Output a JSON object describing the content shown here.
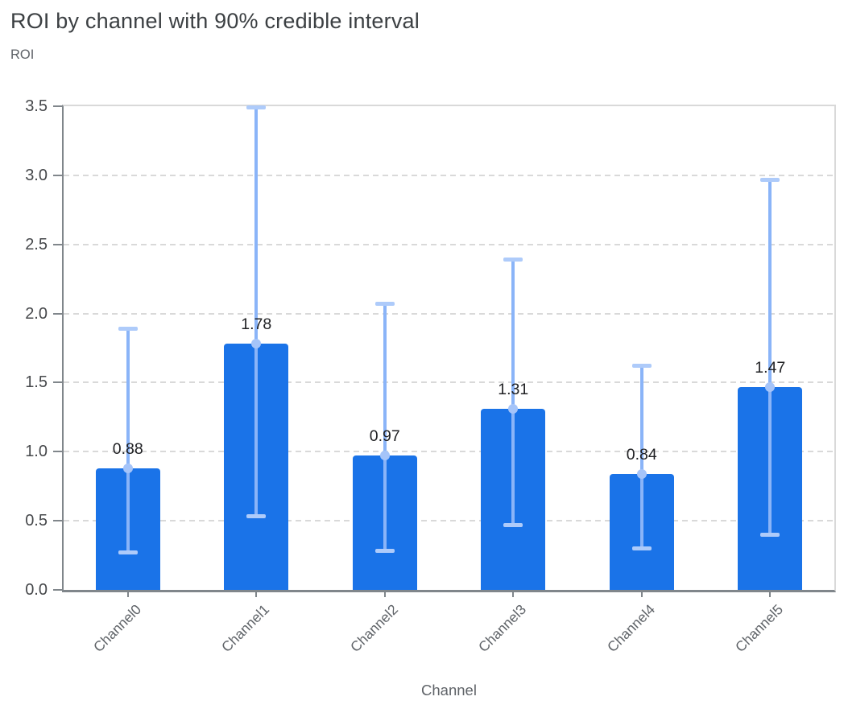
{
  "header": {
    "title": "ROI by channel with 90% credible interval"
  },
  "chart_data": {
    "type": "bar",
    "title": "ROI by channel with 90% credible interval",
    "xlabel": "Channel",
    "ylabel": "ROI",
    "categories": [
      "Channel0",
      "Channel1",
      "Channel2",
      "Channel3",
      "Channel4",
      "Channel5"
    ],
    "series": [
      {
        "name": "roi_mean",
        "values": [
          0.88,
          1.78,
          0.97,
          1.31,
          0.84,
          1.47
        ]
      },
      {
        "name": "ci_90_lower",
        "values": [
          0.27,
          0.53,
          0.28,
          0.47,
          0.3,
          0.4
        ]
      },
      {
        "name": "ci_90_upper",
        "values": [
          1.89,
          3.49,
          2.07,
          2.39,
          1.62,
          2.97
        ]
      }
    ],
    "bar_labels": [
      "0.88",
      "1.78",
      "0.97",
      "1.31",
      "0.84",
      "1.47"
    ],
    "yticks": [
      0,
      0.5,
      1,
      1.5,
      2,
      2.5,
      3,
      3.5
    ],
    "ytick_labels": [
      "0.0",
      "0.5",
      "1.0",
      "1.5",
      "2.0",
      "2.5",
      "3.0",
      "3.5"
    ],
    "ylim": [
      0,
      3.5
    ],
    "grid": "horizontal-dashed",
    "legend": "none",
    "colors": {
      "bar": "#1a73e8",
      "error_stem": "#8ab4f8",
      "error_cap": "#aecbfa",
      "mean_marker": "#a5c4f9",
      "gridline": "#d9d9d9",
      "plot_border": "#d9d9d9",
      "axis": "#80868b",
      "title_text": "#3c4043",
      "ytick_text": "#46484b",
      "xtick_text": "#5f6368",
      "value_label_text": "#202124"
    }
  }
}
